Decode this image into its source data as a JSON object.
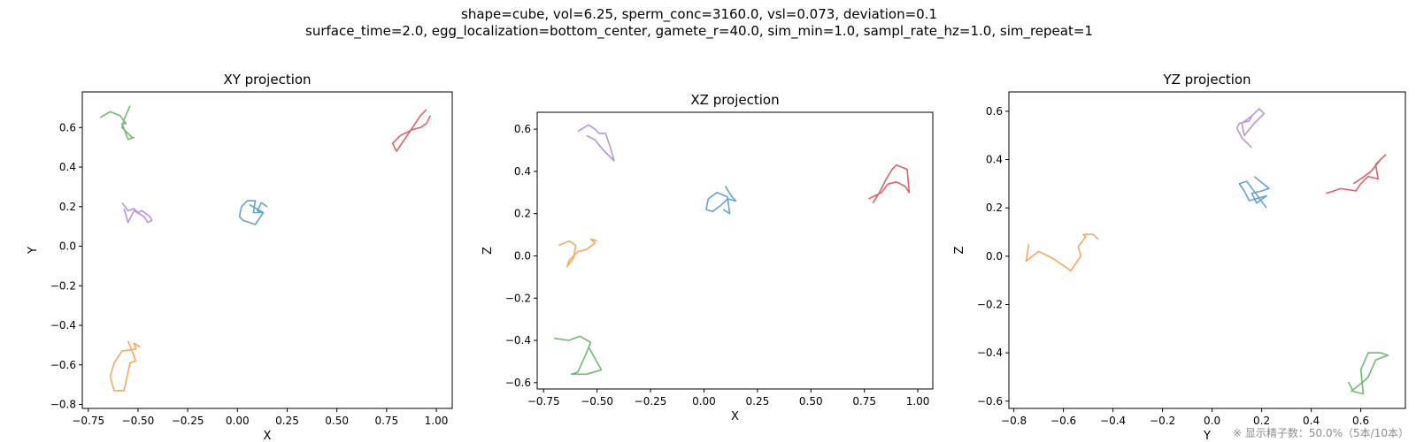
{
  "figure": {
    "suptitle_line1": "shape=cube, vol=6.25, sperm_conc=3160.0, vsl=0.073, deviation=0.1",
    "suptitle_line2": "surface_time=2.0, egg_localization=bottom_center, gamete_r=40.0, sim_min=1.0, sampl_rate_hz=1.0, sim_repeat=1",
    "footnote": "※ 显示精子数：50.0%（5本/10本）"
  },
  "colors": [
    "#5b9fcf",
    "#f9a352",
    "#67b867",
    "#de5a5b",
    "#b48fd4"
  ],
  "chart_data": [
    {
      "type": "line",
      "title": "XY projection",
      "xlabel": "X",
      "ylabel": "Y",
      "xlim": [
        -0.78,
        1.08
      ],
      "ylim": [
        -0.82,
        0.78
      ],
      "xticks": [
        -0.75,
        -0.5,
        -0.25,
        0.0,
        0.25,
        0.5,
        0.75,
        1.0
      ],
      "xtick_labels": [
        "−0.75",
        "−0.50",
        "−0.25",
        "0.00",
        "0.25",
        "0.50",
        "0.75",
        "1.00"
      ],
      "yticks": [
        -0.8,
        -0.6,
        -0.4,
        -0.2,
        0.0,
        0.2,
        0.4,
        0.6
      ],
      "ytick_labels": [
        "−0.8",
        "−0.6",
        "−0.4",
        "−0.2",
        "0.0",
        "0.2",
        "0.4",
        "0.6"
      ],
      "series": [
        {
          "x": [
            0.15,
            0.12,
            0.1,
            0.12,
            0.08,
            0.09,
            0.05,
            0.02,
            0.01,
            0.03,
            0.09,
            0.13,
            0.06
          ],
          "y": [
            0.2,
            0.22,
            0.18,
            0.17,
            0.17,
            0.23,
            0.23,
            0.2,
            0.15,
            0.13,
            0.11,
            0.17,
            0.21
          ]
        },
        {
          "x": [
            -0.49,
            -0.52,
            -0.51,
            -0.58,
            -0.62,
            -0.64,
            -0.62,
            -0.57,
            -0.54,
            -0.51,
            -0.55
          ],
          "y": [
            -0.51,
            -0.49,
            -0.52,
            -0.53,
            -0.59,
            -0.66,
            -0.73,
            -0.73,
            -0.59,
            -0.58,
            -0.48
          ]
        },
        {
          "x": [
            -0.69,
            -0.64,
            -0.59,
            -0.56,
            -0.58,
            -0.55,
            -0.52,
            -0.53,
            -0.58,
            -0.57,
            -0.54
          ],
          "y": [
            0.65,
            0.68,
            0.66,
            0.62,
            0.62,
            0.54,
            0.55,
            0.55,
            0.6,
            0.64,
            0.71
          ]
        },
        {
          "x": [
            0.97,
            0.95,
            0.92,
            0.88,
            0.86,
            0.82,
            0.78,
            0.79,
            0.8,
            0.84,
            0.88,
            0.92,
            0.95
          ],
          "y": [
            0.66,
            0.62,
            0.6,
            0.59,
            0.58,
            0.56,
            0.52,
            0.5,
            0.48,
            0.54,
            0.6,
            0.66,
            0.69
          ]
        },
        {
          "x": [
            -0.58,
            -0.55,
            -0.52,
            -0.5,
            -0.48,
            -0.44,
            -0.43,
            -0.45,
            -0.47,
            -0.52,
            -0.55,
            -0.57
          ],
          "y": [
            0.22,
            0.18,
            0.19,
            0.17,
            0.18,
            0.15,
            0.13,
            0.12,
            0.15,
            0.18,
            0.12,
            0.19
          ]
        }
      ]
    },
    {
      "type": "line",
      "title": "XZ projection",
      "xlabel": "X",
      "ylabel": "Z",
      "xlim": [
        -0.78,
        1.07
      ],
      "ylim": [
        -0.63,
        0.68
      ],
      "xticks": [
        -0.75,
        -0.5,
        -0.25,
        0.0,
        0.25,
        0.5,
        0.75,
        1.0
      ],
      "xtick_labels": [
        "−0.75",
        "−0.50",
        "−0.25",
        "0.00",
        "0.25",
        "0.50",
        "0.75",
        "1.00"
      ],
      "yticks": [
        -0.6,
        -0.4,
        -0.2,
        0.0,
        0.2,
        0.4,
        0.6
      ],
      "ytick_labels": [
        "−0.6",
        "−0.4",
        "−0.2",
        "0.0",
        "0.2",
        "0.4",
        "0.6"
      ],
      "series": [
        {
          "x": [
            0.1,
            0.13,
            0.15,
            0.11,
            0.08,
            0.04,
            0.01,
            0.02,
            0.06,
            0.11,
            0.12,
            0.09
          ],
          "y": [
            0.33,
            0.28,
            0.26,
            0.27,
            0.24,
            0.21,
            0.22,
            0.27,
            0.3,
            0.28,
            0.2,
            0.22
          ]
        },
        {
          "x": [
            -0.5,
            -0.53,
            -0.51,
            -0.55,
            -0.59,
            -0.63,
            -0.64,
            -0.61,
            -0.6,
            -0.63,
            -0.68
          ],
          "y": [
            0.07,
            0.08,
            0.06,
            0.03,
            0.02,
            -0.02,
            -0.05,
            -0.01,
            0.05,
            0.07,
            0.05
          ]
        },
        {
          "x": [
            -0.7,
            -0.63,
            -0.58,
            -0.53,
            -0.55,
            -0.59,
            -0.62,
            -0.55,
            -0.48,
            -0.54
          ],
          "y": [
            -0.39,
            -0.4,
            -0.38,
            -0.41,
            -0.46,
            -0.55,
            -0.56,
            -0.56,
            -0.54,
            -0.43
          ]
        },
        {
          "x": [
            0.77,
            0.83,
            0.86,
            0.9,
            0.94,
            0.96,
            0.95,
            0.9,
            0.88,
            0.85,
            0.82,
            0.79
          ],
          "y": [
            0.27,
            0.3,
            0.34,
            0.35,
            0.33,
            0.3,
            0.41,
            0.43,
            0.41,
            0.36,
            0.3,
            0.25
          ]
        },
        {
          "x": [
            -0.59,
            -0.54,
            -0.51,
            -0.49,
            -0.46,
            -0.44,
            -0.42,
            -0.47,
            -0.51,
            -0.55
          ],
          "y": [
            0.59,
            0.62,
            0.6,
            0.58,
            0.58,
            0.52,
            0.45,
            0.5,
            0.55,
            0.57
          ]
        }
      ]
    },
    {
      "type": "line",
      "title": "YZ projection",
      "xlabel": "Y",
      "ylabel": "Z",
      "xlim": [
        -0.82,
        0.78
      ],
      "ylim": [
        -0.63,
        0.68
      ],
      "xticks": [
        -0.8,
        -0.6,
        -0.4,
        -0.2,
        0.0,
        0.2,
        0.4,
        0.6
      ],
      "xtick_labels": [
        "−0.8",
        "−0.6",
        "−0.4",
        "−0.2",
        "0.0",
        "0.2",
        "0.4",
        "0.6"
      ],
      "yticks": [
        -0.6,
        -0.4,
        -0.2,
        0.0,
        0.2,
        0.4,
        0.6
      ],
      "ytick_labels": [
        "−0.6",
        "−0.4",
        "−0.2",
        "0.0",
        "0.2",
        "0.4",
        "0.6"
      ],
      "series": [
        {
          "x": [
            0.17,
            0.23,
            0.2,
            0.16,
            0.18,
            0.22,
            0.15,
            0.13,
            0.11,
            0.14,
            0.19,
            0.22
          ],
          "y": [
            0.33,
            0.28,
            0.27,
            0.26,
            0.22,
            0.25,
            0.23,
            0.27,
            0.3,
            0.31,
            0.24,
            0.2
          ]
        },
        {
          "x": [
            -0.74,
            -0.75,
            -0.7,
            -0.64,
            -0.57,
            -0.53,
            -0.54,
            -0.51,
            -0.52,
            -0.48,
            -0.46
          ],
          "y": [
            0.05,
            -0.02,
            0.02,
            -0.01,
            -0.06,
            0.0,
            0.04,
            0.08,
            0.09,
            0.09,
            0.07
          ]
        },
        {
          "x": [
            0.56,
            0.61,
            0.63,
            0.66,
            0.71,
            0.68,
            0.63,
            0.6,
            0.61,
            0.57,
            0.55
          ],
          "y": [
            -0.56,
            -0.52,
            -0.5,
            -0.43,
            -0.41,
            -0.4,
            -0.4,
            -0.47,
            -0.57,
            -0.56,
            -0.52
          ]
        },
        {
          "x": [
            0.46,
            0.52,
            0.58,
            0.6,
            0.63,
            0.67,
            0.66,
            0.7,
            0.68,
            0.64,
            0.6,
            0.57
          ],
          "y": [
            0.26,
            0.28,
            0.27,
            0.3,
            0.33,
            0.32,
            0.38,
            0.42,
            0.4,
            0.35,
            0.32,
            0.3
          ]
        },
        {
          "x": [
            0.16,
            0.12,
            0.1,
            0.11,
            0.15,
            0.16,
            0.19,
            0.21,
            0.17,
            0.13,
            0.12,
            0.16
          ],
          "y": [
            0.45,
            0.49,
            0.53,
            0.55,
            0.56,
            0.58,
            0.61,
            0.59,
            0.55,
            0.5,
            0.55,
            0.58
          ]
        }
      ]
    }
  ]
}
